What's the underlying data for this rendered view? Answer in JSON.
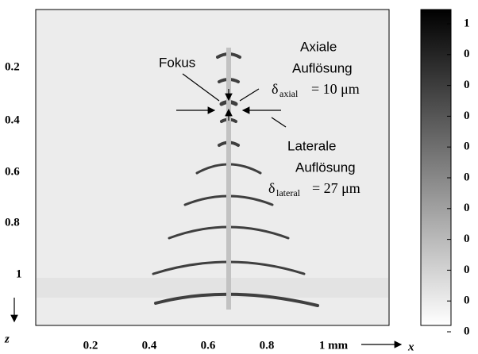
{
  "figure": {
    "annotations": {
      "focus": "Fokus",
      "axial_title_1": "Axiale",
      "axial_title_2": "Auflösung",
      "axial_symbol": "δ",
      "axial_sub": "axial",
      "axial_value": "= 10 μm",
      "lateral_title_1": "Laterale",
      "lateral_title_2": "Auflösung",
      "lateral_symbol": "δ",
      "lateral_sub": "lateral",
      "lateral_value": "= 27 μm"
    },
    "x_axis": {
      "label": "x",
      "ticks": [
        "0.2",
        "0.4",
        "0.6",
        "0.8",
        "1 mm"
      ]
    },
    "z_axis": {
      "label": "z",
      "ticks": [
        "0.2",
        "0.4",
        "0.6",
        "0.8",
        "1"
      ]
    },
    "colorbar": {
      "labels": [
        "1",
        "0",
        "0",
        "0",
        "0",
        "0",
        "0",
        "0",
        "0",
        "0",
        "0"
      ]
    }
  }
}
